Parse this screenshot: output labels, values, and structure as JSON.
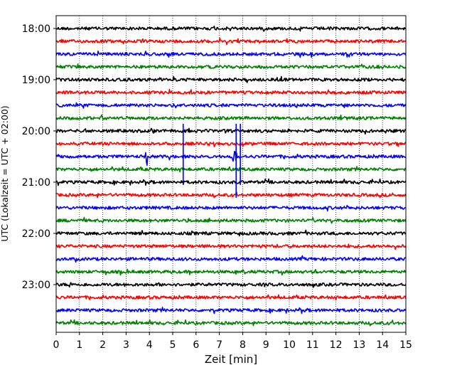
{
  "chart_data": {
    "type": "line",
    "title": "",
    "xlabel": "Zeit  [min]",
    "ylabel": "UTC (Lokalzeit = UTC + 02:00)",
    "xlim": [
      0,
      15
    ],
    "x_ticks": [
      "0",
      "1",
      "2",
      "3",
      "4",
      "5",
      "6",
      "7",
      "8",
      "9",
      "10",
      "11",
      "12",
      "13",
      "14",
      "15"
    ],
    "y_ticks": [
      {
        "label": "18:00",
        "trace_index": 0
      },
      {
        "label": "19:00",
        "trace_index": 4
      },
      {
        "label": "20:00",
        "trace_index": 8
      },
      {
        "label": "21:00",
        "trace_index": 12
      },
      {
        "label": "22:00",
        "trace_index": 16
      },
      {
        "label": "23:00",
        "trace_index": 20
      }
    ],
    "grid": "vertical-dotted",
    "trace_minutes": 15,
    "trace_colors": [
      "#000000",
      "#ff0000",
      "#0000ff",
      "#008000"
    ],
    "series": [
      {
        "start": "18:00",
        "color": "#000000"
      },
      {
        "start": "18:15",
        "color": "#ff0000"
      },
      {
        "start": "18:30",
        "color": "#0000ff"
      },
      {
        "start": "18:45",
        "color": "#008000"
      },
      {
        "start": "19:00",
        "color": "#000000"
      },
      {
        "start": "19:15",
        "color": "#ff0000"
      },
      {
        "start": "19:30",
        "color": "#0000ff"
      },
      {
        "start": "19:45",
        "color": "#008000"
      },
      {
        "start": "20:00",
        "color": "#000000"
      },
      {
        "start": "20:15",
        "color": "#ff0000"
      },
      {
        "start": "20:30",
        "color": "#0000ff",
        "events": [
          {
            "x": 3.9,
            "amp": 1.0
          },
          {
            "x": 7.65,
            "amp": 1.0
          }
        ]
      },
      {
        "start": "20:45",
        "color": "#008000"
      },
      {
        "start": "21:00",
        "color": "#000000"
      },
      {
        "start": "21:15",
        "color": "#ff0000"
      },
      {
        "start": "21:30",
        "color": "#0000ff"
      },
      {
        "start": "21:45",
        "color": "#008000"
      },
      {
        "start": "22:00",
        "color": "#000000"
      },
      {
        "start": "22:15",
        "color": "#ff0000"
      },
      {
        "start": "22:30",
        "color": "#0000ff"
      },
      {
        "start": "22:45",
        "color": "#008000"
      },
      {
        "start": "23:00",
        "color": "#000000"
      },
      {
        "start": "23:15",
        "color": "#ff0000"
      },
      {
        "start": "23:30",
        "color": "#0000ff"
      },
      {
        "start": "23:45",
        "color": "#008000"
      }
    ],
    "spikes": [
      {
        "x": 5.45,
        "from_trace": 8,
        "to_trace": 12,
        "color": "#0000ff"
      },
      {
        "x": 7.72,
        "from_trace": 8,
        "to_trace": 13,
        "color": "#0000ff"
      },
      {
        "x": 7.9,
        "from_trace": 8,
        "to_trace": 12,
        "color": "#0000ff"
      }
    ]
  }
}
